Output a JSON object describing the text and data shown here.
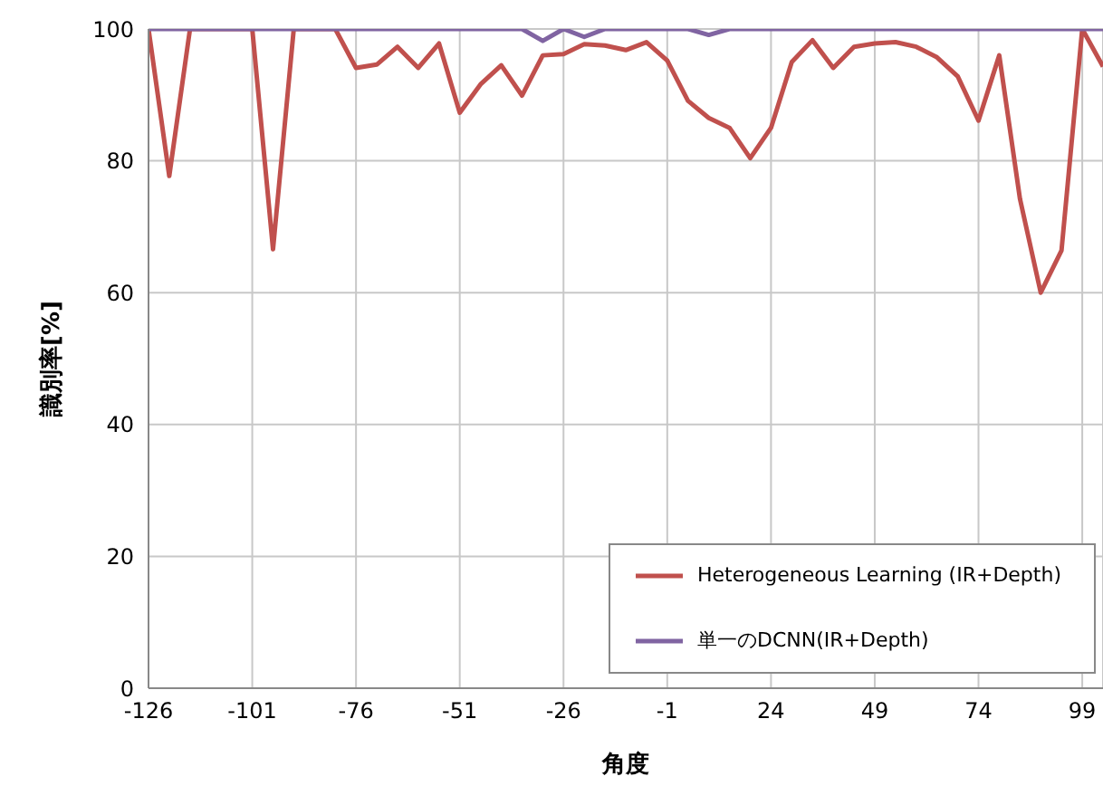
{
  "chart_data": {
    "type": "line",
    "xlabel": "角度",
    "ylabel": "識別率[%]",
    "x": [
      -126,
      -121,
      -116,
      -111,
      -106,
      -101,
      -96,
      -91,
      -86,
      -81,
      -76,
      -71,
      -66,
      -61,
      -56,
      -51,
      -46,
      -41,
      -36,
      -31,
      -26,
      -21,
      -16,
      -11,
      -6,
      -1,
      4,
      9,
      14,
      19,
      24,
      29,
      34,
      39,
      44,
      49,
      54,
      59,
      64,
      69,
      74,
      79,
      84,
      89,
      94,
      99,
      104
    ],
    "series": [
      {
        "name": "Heterogeneous Learning (IR+Depth)",
        "color": "#c0504d",
        "values": [
          100,
          77.7,
          100,
          100,
          100,
          100,
          66.6,
          100,
          100,
          100,
          94.1,
          94.6,
          97.3,
          94.1,
          97.8,
          87.3,
          91.6,
          94.5,
          89.9,
          96,
          96.2,
          97.7,
          97.5,
          96.8,
          98,
          95.2,
          89.1,
          86.5,
          85,
          80.4,
          85,
          95,
          98.3,
          94.1,
          97.3,
          97.8,
          98,
          97.3,
          95.7,
          92.8,
          86.1,
          96,
          74.2,
          60,
          66.4,
          100,
          94.3
        ]
      },
      {
        "name": "単一のDCNN(IR+Depth)",
        "color": "#8064a2",
        "values": [
          100,
          100,
          100,
          100,
          100,
          100,
          100,
          100,
          100,
          100,
          100,
          100,
          100,
          100,
          100,
          100,
          100,
          100,
          100,
          98.2,
          100,
          98.8,
          100,
          100,
          100,
          100,
          100,
          99.1,
          100,
          100,
          100,
          100,
          100,
          100,
          100,
          100,
          100,
          100,
          100,
          100,
          100,
          100,
          100,
          100,
          100,
          100,
          100
        ]
      }
    ],
    "xlim": [
      -126,
      104
    ],
    "xticks": [
      -126,
      -101,
      -76,
      -51,
      -26,
      -1,
      24,
      49,
      74,
      99
    ],
    "ylim": [
      0,
      100
    ],
    "yticks": [
      0,
      20,
      40,
      60,
      80,
      100
    ],
    "grid": true,
    "legend": "bottom right",
    "marker": "none",
    "line_style": "solid"
  }
}
